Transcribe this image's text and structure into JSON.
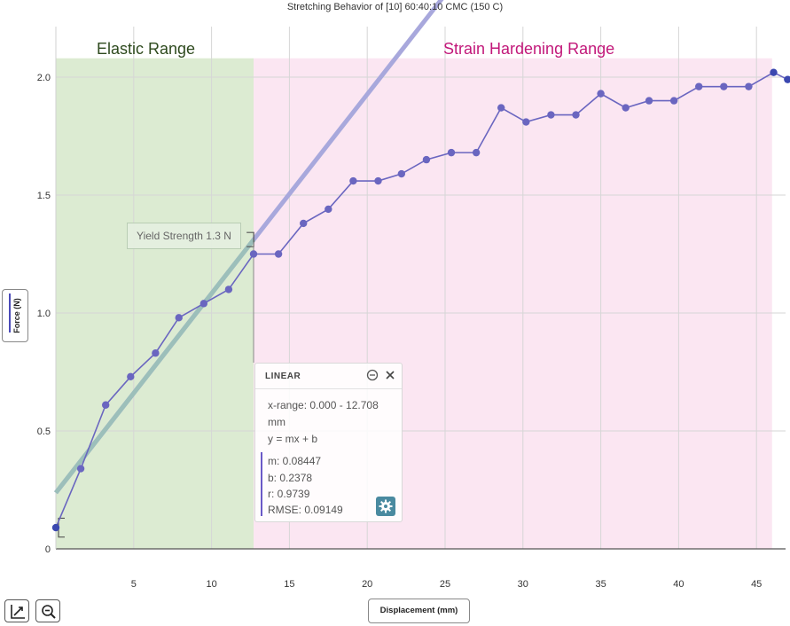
{
  "title": "Stretching Behavior of [10] 60:40:10 CMC (150 C)",
  "chart_data": {
    "type": "scatter",
    "title": "Stretching Behavior of [10] 60:40:10 CMC (150 C)",
    "xlabel": "Displacement (mm)",
    "ylabel": "Force (N)",
    "xlim": [
      0,
      47
    ],
    "ylim": [
      0,
      2.25
    ],
    "xticks": [
      5,
      10,
      15,
      20,
      25,
      30,
      35,
      40,
      45
    ],
    "yticks": [
      0,
      0.5,
      1.0,
      1.5,
      2.0
    ],
    "xtick_labels": [
      "5",
      "10",
      "15",
      "20",
      "25",
      "30",
      "35",
      "40",
      "45"
    ],
    "ytick_labels": [
      "0",
      "0.5",
      "1.0",
      "1.5",
      "2.0"
    ],
    "grid": true,
    "series": [
      {
        "x": [
          0.0,
          1.6,
          3.2,
          4.8,
          6.4,
          7.9,
          9.5,
          11.1,
          12.7,
          14.3,
          15.9,
          17.5,
          19.1,
          20.7,
          22.2,
          23.8,
          25.4,
          27.0,
          28.6,
          30.2,
          31.8,
          33.4,
          35.0,
          36.6,
          38.1,
          39.7,
          41.3,
          42.9,
          44.5,
          46.1,
          47.0
        ],
        "y": [
          0.09,
          0.34,
          0.61,
          0.73,
          0.83,
          0.98,
          1.04,
          1.1,
          1.25,
          1.25,
          1.38,
          1.44,
          1.56,
          1.56,
          1.59,
          1.65,
          1.68,
          1.68,
          1.87,
          1.81,
          1.84,
          1.84,
          1.93,
          1.87,
          1.9,
          1.9,
          1.96,
          1.96,
          1.96,
          2.02,
          1.99
        ],
        "color": "#6a66c0"
      }
    ],
    "fit": {
      "type": "linear",
      "m": 0.08447,
      "b": 0.2378,
      "x_start": 0.0,
      "x_end": 12.708,
      "color": "#a8a8dc",
      "color_in_range": "#9cbfba"
    },
    "regions": [
      {
        "label": "Elastic Range",
        "x0": 0,
        "x1": 12.7,
        "y1": 2.08,
        "fill": "#dcebd2",
        "label_color": "#2e4a1e"
      },
      {
        "label": "Strain Hardening Range",
        "x0": 12.7,
        "x1": 46.0,
        "y1": 2.08,
        "fill": "#fbe6f2",
        "label_color": "#c2187a"
      }
    ],
    "annotation": {
      "label": "Yield Strength 1.3 N",
      "x": 12.7,
      "y": 1.3
    }
  },
  "yield": {
    "label": "Yield Strength 1.3 N"
  },
  "fit_panel": {
    "title": "LINEAR",
    "range_line1": "x-range: 0.000 - 12.708",
    "range_line2": "mm",
    "equation": "y = mx + b",
    "m": "m: 0.08447",
    "b": "b: 0.2378",
    "r": "r: 0.9739",
    "rmse": "RMSE: 0.09149"
  },
  "toolbar": {
    "icons": [
      "rescale-icon",
      "zoom-out-icon"
    ]
  }
}
